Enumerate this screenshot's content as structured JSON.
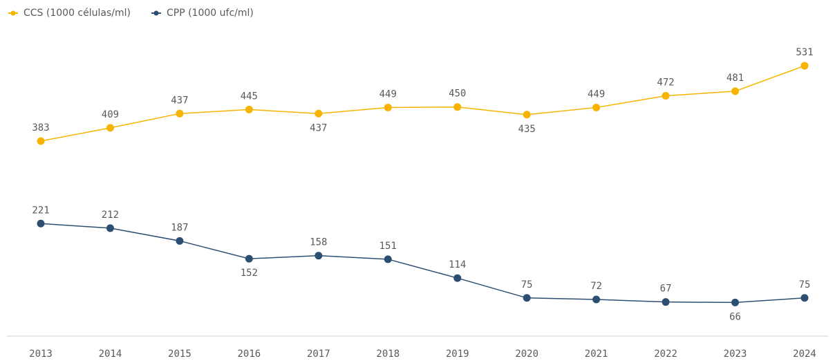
{
  "chart_data": {
    "type": "line",
    "x": [
      2013,
      2014,
      2015,
      2016,
      2017,
      2018,
      2019,
      2020,
      2021,
      2022,
      2023,
      2024
    ],
    "series": [
      {
        "name": "CCS (1000 células/ml)",
        "color": "#f6b400",
        "values": [
          383,
          409,
          437,
          445,
          437,
          449,
          450,
          435,
          449,
          472,
          481,
          531
        ]
      },
      {
        "name": "CPP (1000 ufc/ml)",
        "color": "#2d4e73",
        "values": [
          221,
          212,
          187,
          152,
          158,
          151,
          114,
          75,
          72,
          67,
          66,
          75
        ]
      }
    ],
    "ylim": [
      0,
      580
    ],
    "legend": "top-left"
  }
}
